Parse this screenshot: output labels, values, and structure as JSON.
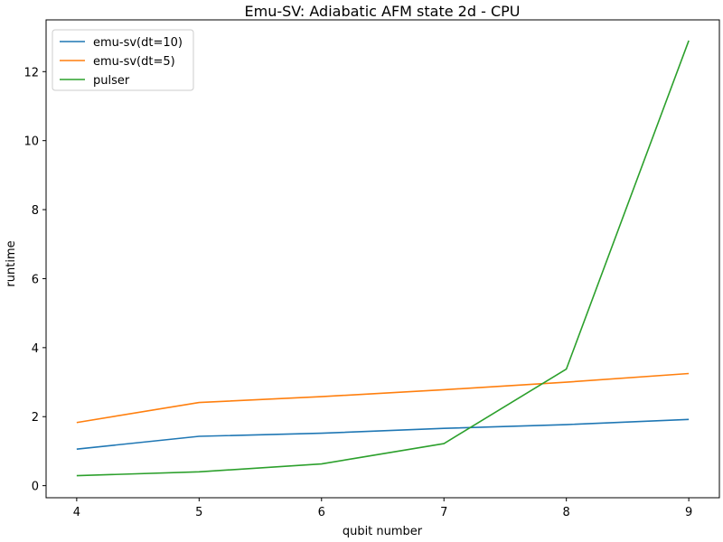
{
  "chart_data": {
    "type": "line",
    "title": "Emu-SV: Adiabatic AFM state 2d - CPU",
    "xlabel": "qubit number",
    "ylabel": "runtime",
    "x": [
      4,
      5,
      6,
      7,
      8,
      9
    ],
    "xlim": [
      3.75,
      9.25
    ],
    "ylim": [
      -0.35,
      13.5
    ],
    "xticks": [
      4,
      5,
      6,
      7,
      8,
      9
    ],
    "yticks": [
      0,
      2,
      4,
      6,
      8,
      10,
      12
    ],
    "grid": false,
    "legend_position": "top-left",
    "series": [
      {
        "name": "emu-sv(dt=10)",
        "color": "#1f77b4",
        "values": [
          1.06,
          1.43,
          1.52,
          1.66,
          1.77,
          1.92
        ]
      },
      {
        "name": "emu-sv(dt=5)",
        "color": "#ff7f0e",
        "values": [
          1.83,
          2.41,
          2.58,
          2.78,
          3.0,
          3.25
        ]
      },
      {
        "name": "pulser",
        "color": "#2ca02c",
        "values": [
          0.29,
          0.4,
          0.63,
          1.22,
          3.38,
          12.9
        ]
      }
    ]
  }
}
